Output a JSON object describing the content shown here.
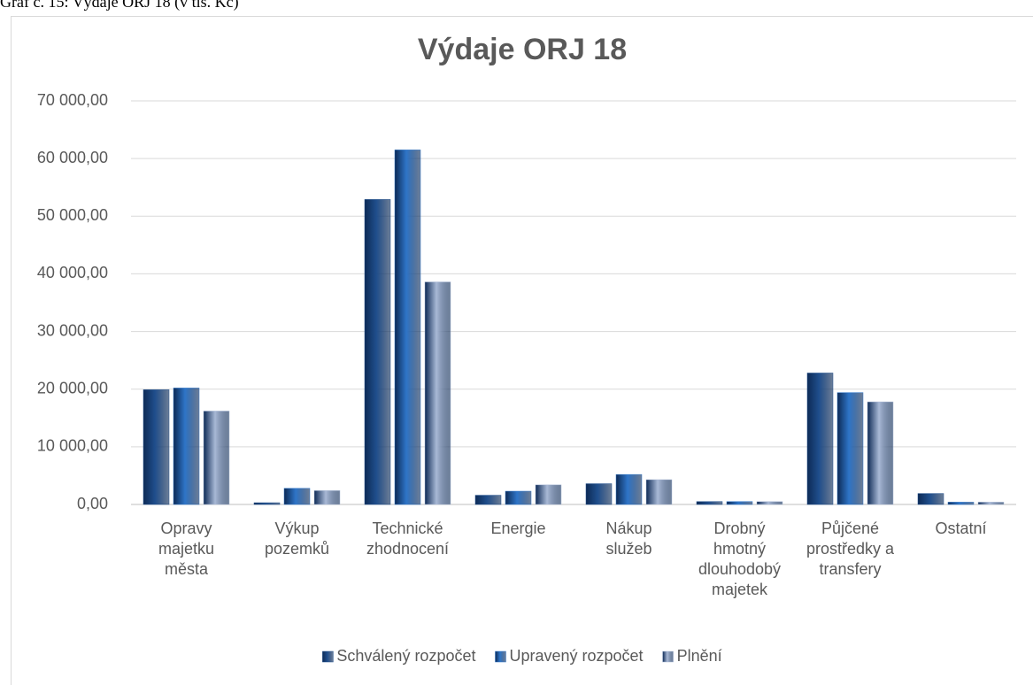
{
  "caption": "Graf č. 15: Výdaje ORJ 18 (v tis. Kč)",
  "chart_data": {
    "type": "bar",
    "title": "Výdaje ORJ 18",
    "categories": [
      "Opravy\nmajetku\nměsta",
      "Výkup\npozemků",
      "Technické\nzhodnocení",
      "Energie",
      "Nákup\nslužeb",
      "Drobný\nhmotný\ndlouhodobý\nmajetek",
      "Půjčené\nprostředky a\ntransfery",
      "Ostatní"
    ],
    "series": [
      {
        "name": "Schválený rozpočet",
        "color": "#1f4e8c",
        "values": [
          19900,
          300,
          52900,
          1600,
          3600,
          500,
          22800,
          1900
        ]
      },
      {
        "name": "Upravený rozpočet",
        "color": "#2e75c8",
        "values": [
          20200,
          2800,
          61500,
          2300,
          5200,
          500,
          19400,
          400
        ]
      },
      {
        "name": "Plnění",
        "color": "#a9b9d6",
        "values": [
          16200,
          2400,
          38600,
          3400,
          4300,
          500,
          17800,
          400
        ]
      }
    ],
    "ylim": [
      0,
      70000
    ],
    "yticks": [
      {
        "value": 0,
        "label": "0,00"
      },
      {
        "value": 10000,
        "label": "10 000,00"
      },
      {
        "value": 20000,
        "label": "20 000,00"
      },
      {
        "value": 30000,
        "label": "30 000,00"
      },
      {
        "value": 40000,
        "label": "40 000,00"
      },
      {
        "value": 50000,
        "label": "50 000,00"
      },
      {
        "value": 60000,
        "label": "60 000,00"
      },
      {
        "value": 70000,
        "label": "70 000,00"
      }
    ],
    "grid": true,
    "legend": "bottom"
  }
}
